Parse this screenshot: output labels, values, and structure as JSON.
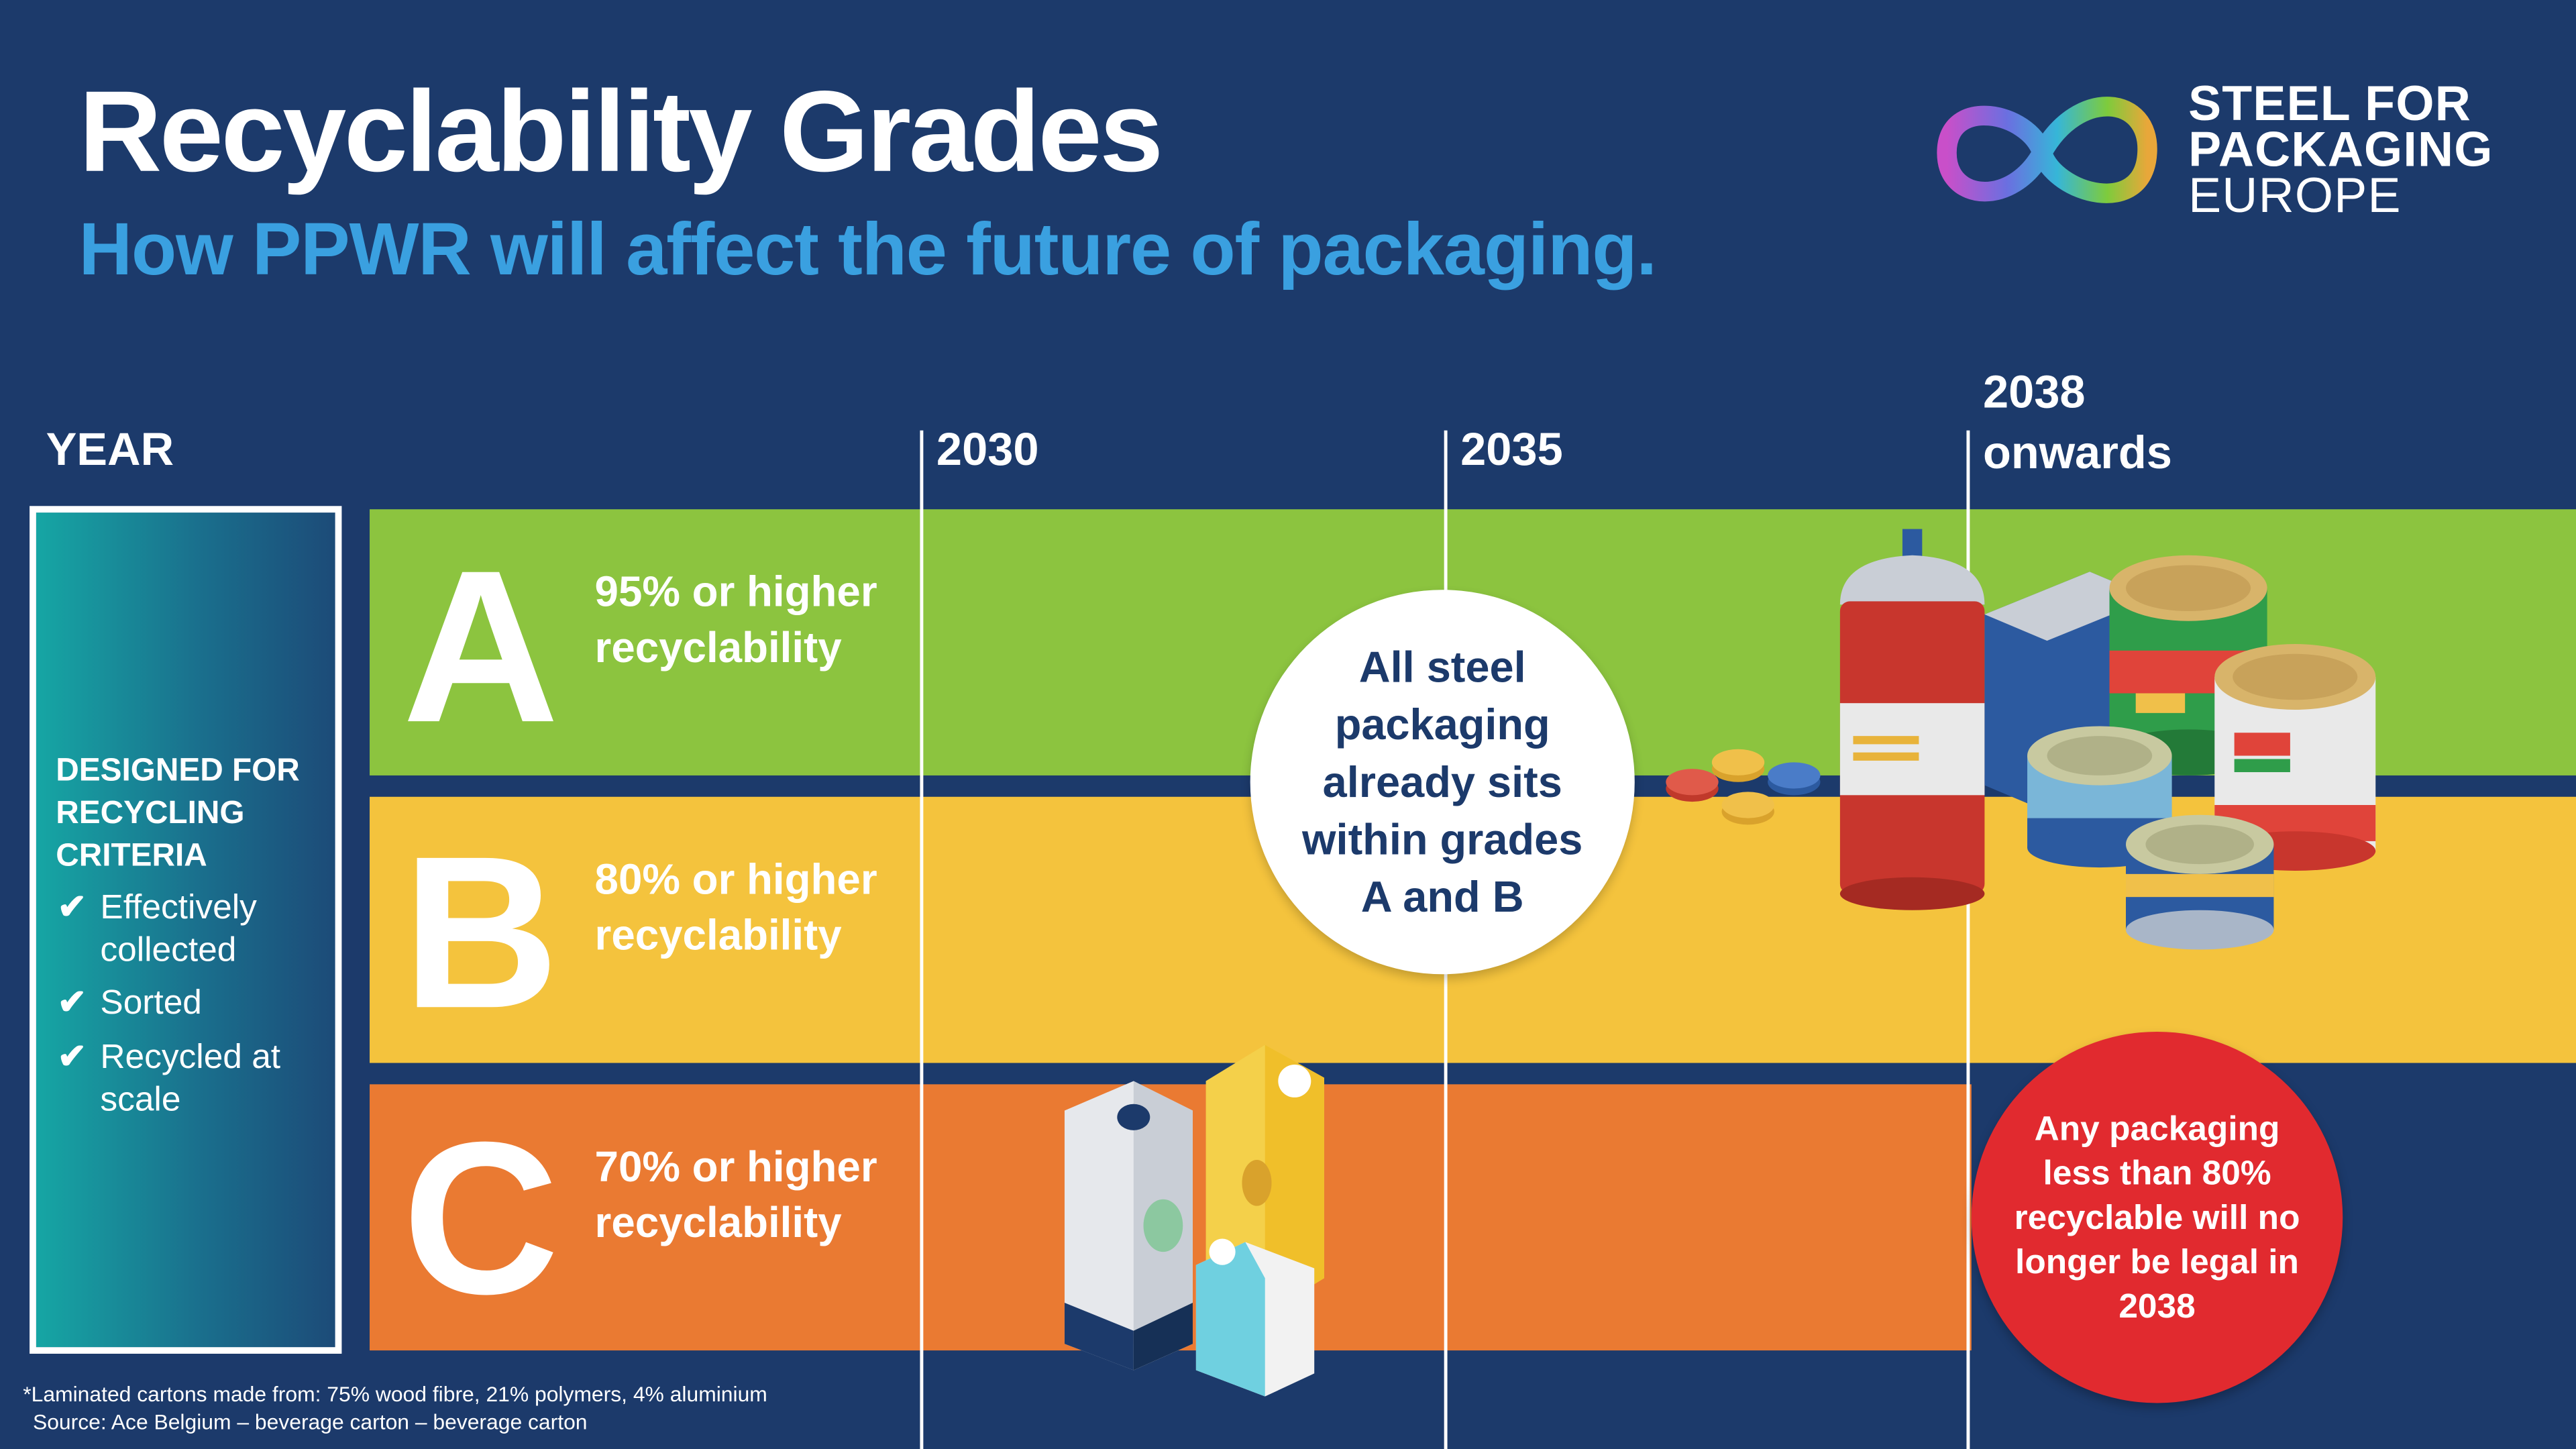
{
  "header": {
    "title": "Recyclability Grades",
    "subtitle": "How PPWR will affect the future of packaging."
  },
  "logo": {
    "line1": "STEEL FOR",
    "line2": "PACKAGING",
    "line3": "EUROPE",
    "icon": "infinity-loop-icon"
  },
  "timeline": {
    "year_label": "YEAR",
    "year_2030": "2030",
    "year_2035": "2035",
    "year_2038_line1": "2038",
    "year_2038_line2": "onwards"
  },
  "criteria": {
    "title": "DESIGNED FOR RECYCLING CRITERIA",
    "check_icon": "checkmark-icon",
    "items": [
      "Effectively collected",
      "Sorted",
      "Recycled at scale"
    ]
  },
  "grades": [
    {
      "letter": "A",
      "text": "95% or higher recyclability",
      "color": "#8cc43f"
    },
    {
      "letter": "B",
      "text": "80% or higher recyclability",
      "color": "#f4c33d"
    },
    {
      "letter": "C",
      "text": "70% or higher recyclability",
      "color": "#ea7a32"
    }
  ],
  "callouts": {
    "steel": "All steel packaging already sits within grades A and B",
    "legal": "Any packaging less than 80% recyclable will no longer be legal in 2038"
  },
  "footnote": {
    "line1": "*Laminated cartons made from: 75% wood fibre, 21% polymers, 4% aluminium",
    "line2": "Source: Ace Belgium – beverage carton – beverage carton"
  },
  "colors": {
    "background": "#1c3a6b",
    "subtitle": "#3aa0e0",
    "legal_circle": "#e12a2f"
  }
}
